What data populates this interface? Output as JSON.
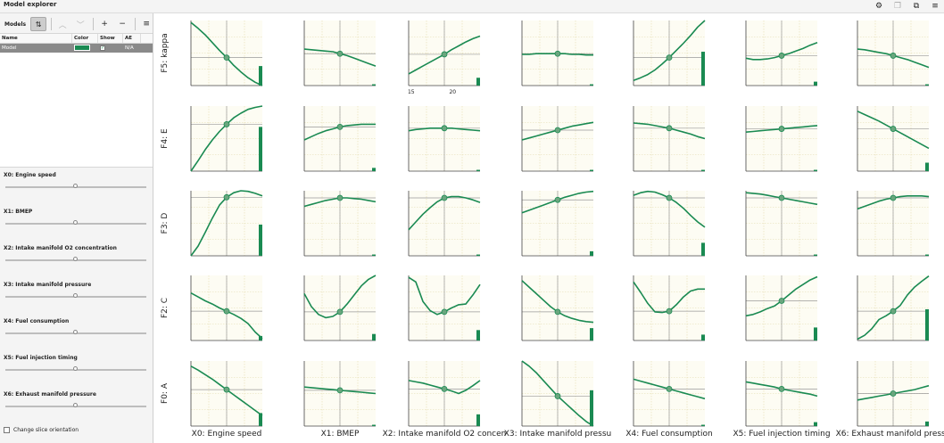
{
  "app": {
    "title": "Model explorer"
  },
  "top_icons": [
    "gear-icon",
    "copy-icon",
    "restore-icon",
    "menu-icon"
  ],
  "toolbar": {
    "models_label": "Models",
    "sort_glyph": "⇅",
    "up_glyph": "︿",
    "down_glyph": "﹀",
    "add_glyph": "+",
    "remove_glyph": "−",
    "menu_glyph": "≡"
  },
  "table": {
    "columns": [
      "Name",
      "Color",
      "Show",
      "AE"
    ],
    "rows": [
      {
        "name": "Model",
        "color": "#1a8a52",
        "show": true,
        "ae": "N/A"
      }
    ]
  },
  "sliders": [
    {
      "label": "X0: Engine speed",
      "value": 0.5
    },
    {
      "label": "X1: BMEP",
      "value": 0.5
    },
    {
      "label": "X2: Intake manifold O2 concentration",
      "value": 0.5
    },
    {
      "label": "X3: Intake manifold pressure",
      "value": 0.5
    },
    {
      "label": "X4: Fuel consumption",
      "value": 0.5
    },
    {
      "label": "X5: Fuel injection timing",
      "value": 0.5
    },
    {
      "label": "X6: Exhaust manifold pressure",
      "value": 0.5
    }
  ],
  "change_slice_label": "Change slice orientation",
  "colors": {
    "curve": "#1a8a52",
    "plot_bg": "#fdfcf3",
    "grid": "#e4dcb0",
    "axis": "#444444"
  },
  "chart_data": {
    "type": "line",
    "rows": [
      "F5: kappa",
      "F4: E",
      "F3: D",
      "F2: C",
      "F0: A"
    ],
    "columns": [
      "X0: Engine speed",
      "X1: BMEP",
      "X2: Intake manifold O2 concen",
      "X3: Intake manifold pressu",
      "X4: Fuel consumption",
      "X5: Fuel injection timing",
      "X6: Exhaust manifold pressu"
    ],
    "tick_labels": {
      "row": 0,
      "col": 2,
      "x": [
        15,
        20
      ],
      "x_range": [
        14.7,
        23.3
      ]
    },
    "x": [
      0,
      0.1,
      0.2,
      0.3,
      0.4,
      0.5,
      0.6,
      0.7,
      0.8,
      0.9,
      1.0
    ],
    "slice_x": 0.5,
    "y_range": [
      0,
      1
    ],
    "curves": [
      [
        [
          0.97,
          0.88,
          0.78,
          0.66,
          0.54,
          0.43,
          0.31,
          0.21,
          0.12,
          0.05,
          0.0
        ],
        [
          0.56,
          0.55,
          0.54,
          0.53,
          0.52,
          0.49,
          0.46,
          0.42,
          0.38,
          0.34,
          0.3
        ],
        [
          0.18,
          0.24,
          0.3,
          0.36,
          0.42,
          0.48,
          0.55,
          0.61,
          0.67,
          0.72,
          0.76
        ],
        [
          0.48,
          0.48,
          0.49,
          0.49,
          0.49,
          0.49,
          0.49,
          0.48,
          0.48,
          0.47,
          0.47
        ],
        [
          0.08,
          0.12,
          0.17,
          0.24,
          0.33,
          0.43,
          0.54,
          0.65,
          0.77,
          0.9,
          1.0
        ],
        [
          0.42,
          0.4,
          0.4,
          0.41,
          0.43,
          0.46,
          0.49,
          0.53,
          0.57,
          0.62,
          0.66
        ],
        [
          0.56,
          0.55,
          0.53,
          0.51,
          0.49,
          0.46,
          0.43,
          0.4,
          0.36,
          0.32,
          0.28
        ]
      ],
      [
        [
          0.0,
          0.16,
          0.33,
          0.48,
          0.61,
          0.72,
          0.82,
          0.89,
          0.95,
          0.98,
          1.0
        ],
        [
          0.48,
          0.53,
          0.58,
          0.62,
          0.65,
          0.68,
          0.7,
          0.71,
          0.72,
          0.72,
          0.72
        ],
        [
          0.62,
          0.64,
          0.65,
          0.66,
          0.66,
          0.66,
          0.66,
          0.65,
          0.64,
          0.63,
          0.62
        ],
        [
          0.48,
          0.51,
          0.54,
          0.57,
          0.6,
          0.63,
          0.66,
          0.69,
          0.71,
          0.73,
          0.75
        ],
        [
          0.74,
          0.73,
          0.72,
          0.7,
          0.68,
          0.66,
          0.63,
          0.6,
          0.57,
          0.53,
          0.5
        ],
        [
          0.6,
          0.61,
          0.62,
          0.63,
          0.64,
          0.65,
          0.66,
          0.67,
          0.68,
          0.69,
          0.7
        ],
        [
          0.92,
          0.87,
          0.82,
          0.77,
          0.71,
          0.65,
          0.59,
          0.53,
          0.47,
          0.41,
          0.35
        ]
      ],
      [
        [
          0.0,
          0.15,
          0.36,
          0.58,
          0.78,
          0.9,
          0.97,
          1.0,
          0.99,
          0.96,
          0.92
        ],
        [
          0.76,
          0.79,
          0.82,
          0.85,
          0.87,
          0.89,
          0.89,
          0.88,
          0.87,
          0.85,
          0.83
        ],
        [
          0.4,
          0.52,
          0.64,
          0.74,
          0.83,
          0.89,
          0.91,
          0.91,
          0.89,
          0.86,
          0.82
        ],
        [
          0.66,
          0.7,
          0.74,
          0.78,
          0.82,
          0.86,
          0.9,
          0.93,
          0.96,
          0.98,
          0.99
        ],
        [
          0.93,
          0.97,
          0.99,
          0.98,
          0.94,
          0.89,
          0.82,
          0.73,
          0.62,
          0.52,
          0.44
        ],
        [
          0.97,
          0.96,
          0.95,
          0.93,
          0.91,
          0.89,
          0.87,
          0.85,
          0.83,
          0.81,
          0.79
        ],
        [
          0.72,
          0.76,
          0.8,
          0.84,
          0.87,
          0.89,
          0.91,
          0.92,
          0.92,
          0.92,
          0.91
        ]
      ],
      [
        [
          0.73,
          0.67,
          0.61,
          0.56,
          0.5,
          0.45,
          0.4,
          0.34,
          0.26,
          0.13,
          0.03
        ],
        [
          0.72,
          0.52,
          0.4,
          0.35,
          0.37,
          0.44,
          0.56,
          0.7,
          0.84,
          0.94,
          1.0
        ],
        [
          0.97,
          0.9,
          0.6,
          0.46,
          0.4,
          0.44,
          0.5,
          0.55,
          0.56,
          0.7,
          0.86
        ],
        [
          0.92,
          0.82,
          0.72,
          0.62,
          0.52,
          0.44,
          0.38,
          0.34,
          0.31,
          0.29,
          0.28
        ],
        [
          0.9,
          0.74,
          0.57,
          0.44,
          0.43,
          0.45,
          0.55,
          0.67,
          0.76,
          0.79,
          0.79
        ],
        [
          0.38,
          0.4,
          0.44,
          0.49,
          0.53,
          0.61,
          0.7,
          0.79,
          0.86,
          0.93,
          0.98
        ],
        [
          0.02,
          0.08,
          0.18,
          0.32,
          0.38,
          0.45,
          0.54,
          0.7,
          0.82,
          0.91,
          0.99
        ]
      ],
      [
        [
          0.92,
          0.86,
          0.79,
          0.72,
          0.64,
          0.56,
          0.48,
          0.4,
          0.32,
          0.24,
          0.16
        ],
        [
          0.6,
          0.59,
          0.58,
          0.57,
          0.56,
          0.55,
          0.54,
          0.53,
          0.52,
          0.51,
          0.5
        ],
        [
          0.7,
          0.68,
          0.66,
          0.63,
          0.6,
          0.57,
          0.54,
          0.5,
          0.55,
          0.62,
          0.7
        ],
        [
          1.0,
          0.92,
          0.82,
          0.7,
          0.58,
          0.46,
          0.36,
          0.26,
          0.16,
          0.07,
          0.0
        ],
        [
          0.72,
          0.69,
          0.66,
          0.63,
          0.6,
          0.57,
          0.54,
          0.51,
          0.48,
          0.45,
          0.42
        ],
        [
          0.68,
          0.66,
          0.64,
          0.62,
          0.6,
          0.57,
          0.55,
          0.53,
          0.51,
          0.49,
          0.46
        ],
        [
          0.4,
          0.42,
          0.44,
          0.46,
          0.48,
          0.5,
          0.52,
          0.54,
          0.56,
          0.59,
          0.62
        ]
      ]
    ],
    "bar_values": [
      [
        0.3,
        0.02,
        0.12,
        0.02,
        0.52,
        0.06,
        0.02
      ],
      [
        0.68,
        0.05,
        0.02,
        0.02,
        0.02,
        0.02,
        0.13
      ],
      [
        0.48,
        0.02,
        0.02,
        0.07,
        0.2,
        0.02,
        0.02
      ],
      [
        0.07,
        0.1,
        0.16,
        0.19,
        0.09,
        0.2,
        0.48
      ],
      [
        0.2,
        0.02,
        0.18,
        0.55,
        0.02,
        0.06,
        0.07
      ]
    ]
  }
}
